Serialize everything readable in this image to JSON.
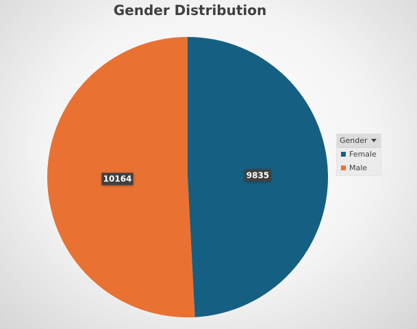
{
  "chart_data": {
    "type": "pie",
    "title": "Gender Distribution",
    "categories": [
      "Female",
      "Male"
    ],
    "values": [
      9835,
      10164
    ],
    "colors": [
      "#156082",
      "#E97132"
    ],
    "data_labels": [
      "9835",
      "10164"
    ],
    "legend": {
      "title": "Gender",
      "placement": "right",
      "filter_dropdown": true
    },
    "start_angle": "12 o'clock",
    "direction": "clockwise"
  }
}
